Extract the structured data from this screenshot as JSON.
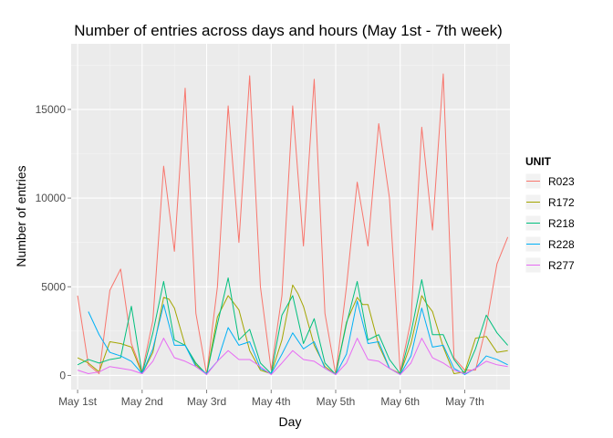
{
  "chart_data": {
    "type": "line",
    "title": "Number of entries across days and hours (May 1st - 7th week)",
    "xlabel": "Day",
    "ylabel": "Number of entries",
    "x_tick_labels": [
      "May 1st",
      "May 2nd",
      "May 3rd",
      "May 4th",
      "May 5th",
      "May 6th",
      "May 7th"
    ],
    "x_tick_days": [
      0,
      1,
      2,
      3,
      4,
      5,
      6
    ],
    "x_range_days": [
      -0.1,
      6.7
    ],
    "y_ticks": [
      0,
      5000,
      10000,
      15000
    ],
    "y_tick_labels": [
      "0",
      "5000",
      "10000",
      "15000"
    ],
    "ylim": [
      -800,
      18700
    ],
    "grid": true,
    "legend": {
      "title": "UNIT",
      "position": "right"
    },
    "colors": {
      "R023": "#F8766D",
      "R172": "#A3A500",
      "R218": "#00BF7D",
      "R228": "#00B0F6",
      "R277": "#E76BF3",
      "panel_background": "#EBEBEB",
      "grid_major": "#FFFFFF",
      "grid_minor": "#F5F5F5"
    },
    "series": [
      {
        "name": "R023",
        "x": [
          0,
          0.1667,
          0.3333,
          0.5,
          0.6667,
          0.8333,
          1,
          1.1667,
          1.3333,
          1.5,
          1.6667,
          1.8333,
          2,
          2.1667,
          2.3333,
          2.5,
          2.6667,
          2.8333,
          3,
          3.1667,
          3.3333,
          3.5,
          3.6667,
          3.8333,
          4,
          4.1667,
          4.3333,
          4.5,
          4.6667,
          4.8333,
          5,
          5.1667,
          5.3333,
          5.5,
          5.6667,
          5.8333,
          6,
          6.1667,
          6.3333,
          6.5,
          6.6667
        ],
        "y": [
          4500,
          600,
          100,
          4800,
          6000,
          1800,
          200,
          3100,
          11800,
          7000,
          16200,
          3500,
          50,
          5000,
          15200,
          7500,
          16900,
          5000,
          300,
          4500,
          15200,
          7300,
          16700,
          3500,
          50,
          5000,
          10900,
          7300,
          14200,
          10000,
          200,
          3100,
          14000,
          8200,
          17000,
          1000,
          300,
          300,
          2800,
          6300,
          7800
        ]
      },
      {
        "name": "R172",
        "x": [
          0,
          0.1667,
          0.3333,
          0.5,
          0.6667,
          0.8333,
          1,
          1.1667,
          1.3333,
          1.4167,
          1.5,
          1.6667,
          1.8333,
          2,
          2.1667,
          2.3333,
          2.5,
          2.6667,
          2.8333,
          3,
          3.1667,
          3.3333,
          3.4167,
          3.5,
          3.6667,
          3.8333,
          4,
          4.1667,
          4.3333,
          4.4167,
          4.5,
          4.6667,
          4.8333,
          5,
          5.1667,
          5.3333,
          5.4167,
          5.5,
          5.6667,
          5.8333,
          6,
          6.1667,
          6.3333,
          6.5,
          6.6667
        ],
        "y": [
          1000,
          700,
          200,
          1900,
          1800,
          1600,
          100,
          1300,
          4400,
          4300,
          3800,
          1700,
          600,
          50,
          3300,
          4500,
          3700,
          1400,
          300,
          100,
          2000,
          5100,
          4600,
          3900,
          1700,
          500,
          50,
          3000,
          4400,
          4000,
          4000,
          1700,
          400,
          100,
          1800,
          4500,
          4000,
          3600,
          1600,
          100,
          200,
          2100,
          2200,
          1300,
          1400
        ]
      },
      {
        "name": "R218",
        "x": [
          0,
          0.1667,
          0.3333,
          0.5,
          0.6667,
          0.8333,
          1,
          1.1667,
          1.3333,
          1.5,
          1.6667,
          1.8333,
          2,
          2.1667,
          2.3333,
          2.5,
          2.6667,
          2.8333,
          3,
          3.1667,
          3.3333,
          3.5,
          3.6667,
          3.8333,
          4,
          4.1667,
          4.3333,
          4.5,
          4.6667,
          4.8333,
          5,
          5.1667,
          5.3333,
          5.5,
          5.6667,
          5.8333,
          6,
          6.1667,
          6.3333,
          6.5,
          6.6667
        ],
        "y": [
          600,
          900,
          700,
          900,
          1000,
          3900,
          100,
          2400,
          5300,
          2000,
          1700,
          700,
          50,
          2900,
          5500,
          2000,
          2600,
          700,
          100,
          3400,
          4500,
          1800,
          3200,
          700,
          50,
          2900,
          5300,
          2000,
          2300,
          900,
          100,
          2400,
          5400,
          2300,
          2300,
          900,
          100,
          1500,
          3400,
          2400,
          1700
        ]
      },
      {
        "name": "R228",
        "x": [
          0.1667,
          0.3333,
          0.5,
          0.6667,
          0.8333,
          1,
          1.1667,
          1.3333,
          1.5,
          1.6667,
          1.8333,
          2,
          2.1667,
          2.3333,
          2.5,
          2.6667,
          2.8333,
          3,
          3.1667,
          3.3333,
          3.5,
          3.6667,
          3.8333,
          4,
          4.1667,
          4.3333,
          4.5,
          4.6667,
          4.8333,
          5,
          5.1667,
          5.3333,
          5.5,
          5.6667,
          5.8333,
          6,
          6.1667,
          6.3333,
          6.5,
          6.6667
        ],
        "y": [
          3600,
          2300,
          1300,
          1100,
          800,
          100,
          1500,
          4000,
          1700,
          1700,
          500,
          100,
          800,
          2700,
          1700,
          1900,
          400,
          100,
          1200,
          2400,
          1500,
          1900,
          400,
          50,
          1200,
          4200,
          1800,
          1900,
          400,
          50,
          1100,
          3800,
          1600,
          1700,
          400,
          50,
          400,
          1100,
          900,
          600
        ]
      },
      {
        "name": "R277",
        "x": [
          0,
          0.1667,
          0.3333,
          0.5,
          0.6667,
          0.8333,
          1,
          1.1667,
          1.3333,
          1.5,
          1.6667,
          1.8333,
          2,
          2.1667,
          2.3333,
          2.5,
          2.6667,
          2.8333,
          3,
          3.1667,
          3.3333,
          3.5,
          3.6667,
          3.8333,
          4,
          4.1667,
          4.3333,
          4.5,
          4.6667,
          4.8333,
          5,
          5.1667,
          5.3333,
          5.5,
          5.6667,
          5.8333,
          6,
          6.1667,
          6.3333,
          6.5,
          6.6667
        ],
        "y": [
          300,
          100,
          200,
          500,
          400,
          300,
          100,
          800,
          2100,
          1000,
          800,
          500,
          50,
          800,
          1400,
          900,
          900,
          500,
          50,
          700,
          1400,
          900,
          800,
          400,
          50,
          700,
          2100,
          900,
          800,
          400,
          50,
          700,
          2100,
          1000,
          700,
          300,
          100,
          400,
          800,
          600,
          500
        ]
      }
    ]
  }
}
